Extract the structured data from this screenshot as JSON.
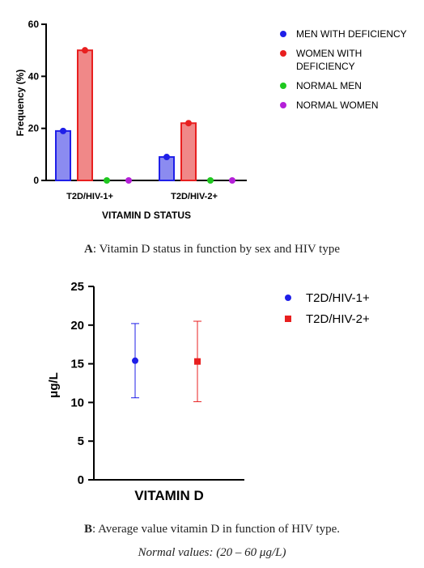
{
  "chart_data": [
    {
      "type": "bar",
      "panel": "A",
      "xlabel": "VITAMIN D STATUS",
      "ylabel": "Frequency (%)",
      "ylim": [
        0,
        60
      ],
      "yticks": [
        0,
        20,
        40,
        60
      ],
      "categories": [
        "T2D/HIV-1+",
        "T2D/HIV-2+"
      ],
      "series": [
        {
          "name": "MEN WITH DEFICIENCY",
          "values": [
            19,
            9
          ],
          "color": "#1f1fe8",
          "fill": "#8b8bf0"
        },
        {
          "name": "WOMEN WITH DEFICIENCY",
          "values": [
            50,
            22
          ],
          "color": "#e81f1f",
          "fill": "#f08888"
        },
        {
          "name": "NORMAL MEN",
          "values": [
            0,
            0
          ],
          "color": "#1fc81f",
          "fill": "#1fc81f"
        },
        {
          "name": "NORMAL WOMEN",
          "values": [
            0,
            0
          ],
          "color": "#b41fd8",
          "fill": "#b41fd8"
        }
      ],
      "legend": "right"
    },
    {
      "type": "scatter",
      "panel": "B",
      "xlabel": "VITAMIN D",
      "ylabel": "μg/L",
      "ylim": [
        0,
        25
      ],
      "yticks": [
        0,
        5,
        10,
        15,
        20,
        25
      ],
      "series": [
        {
          "name": "T2D/HIV-1+",
          "mean": 15.4,
          "low": 10.6,
          "high": 20.2,
          "marker": "circle",
          "color": "#1f1fe8"
        },
        {
          "name": "T2D/HIV-2+",
          "mean": 15.3,
          "low": 10.1,
          "high": 20.5,
          "marker": "square",
          "color": "#e81f1f"
        }
      ],
      "legend": "right"
    }
  ],
  "captions": {
    "a_letter": "A",
    "a_text": ": Vitamin D status in function by sex and HIV type",
    "b_letter": "B",
    "b_text": ": Average value vitamin D in function of HIV type.",
    "b_note": "Normal values: (20 – 60 μg/L)"
  }
}
